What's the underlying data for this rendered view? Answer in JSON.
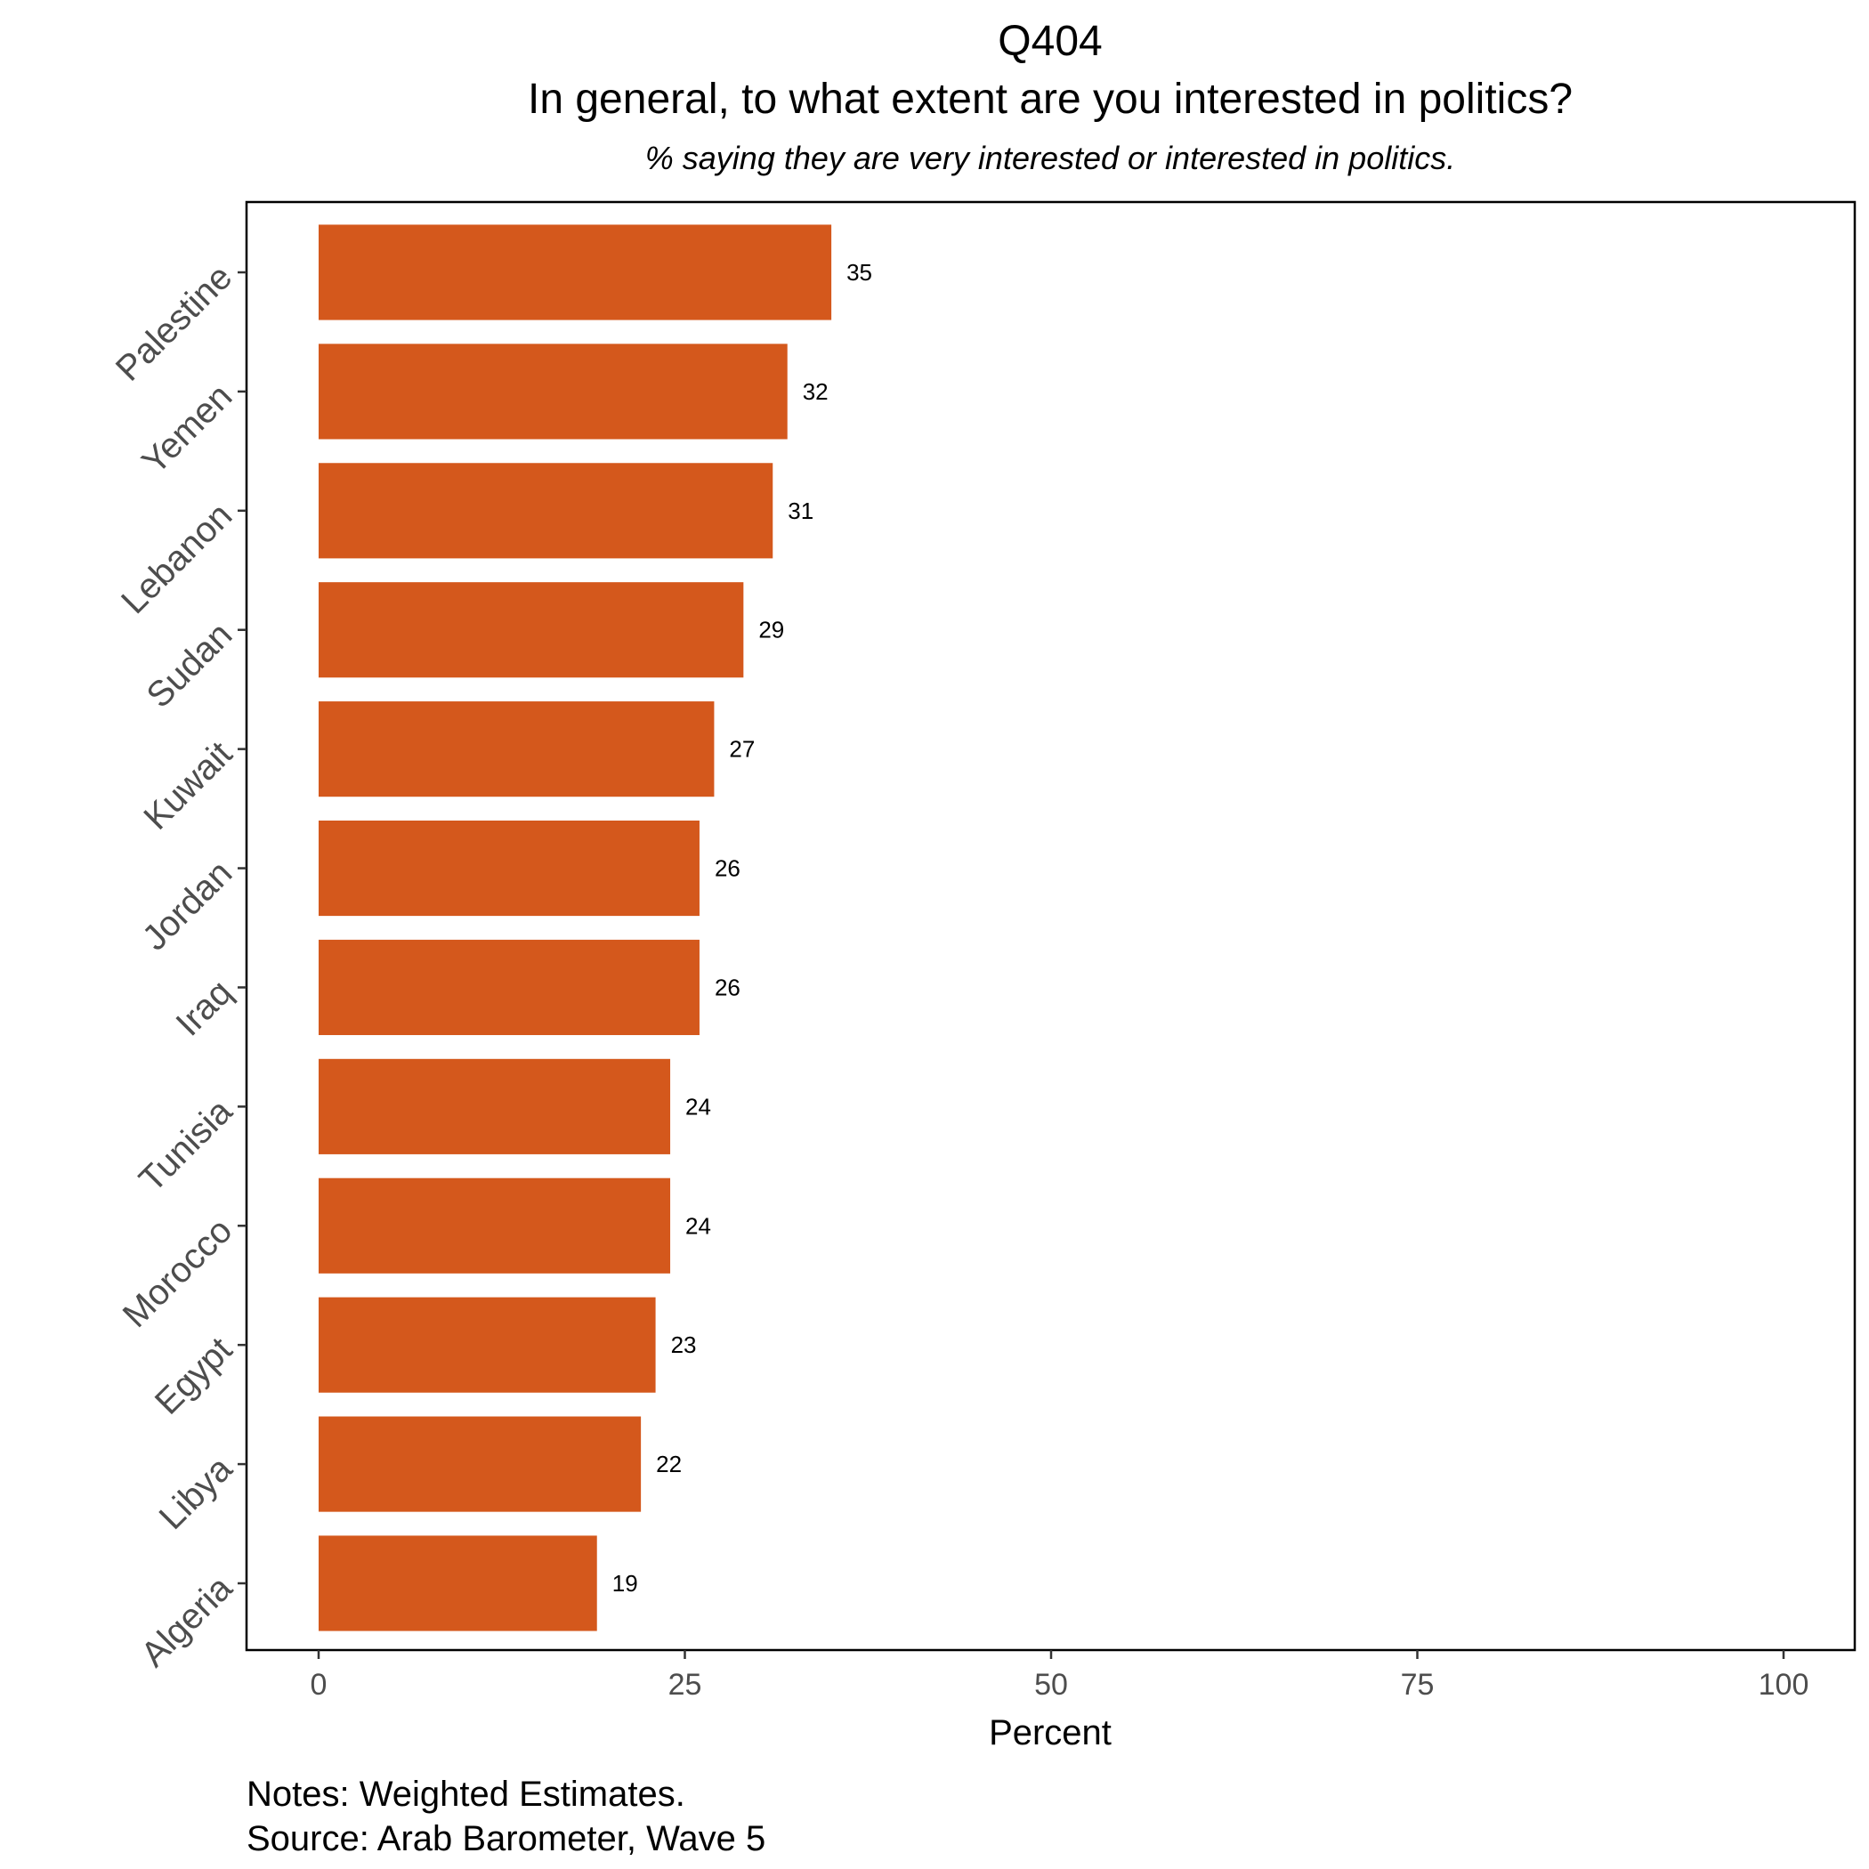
{
  "chart_data": {
    "type": "bar",
    "orientation": "horizontal",
    "title": "Q404",
    "subtitle": "In general, to what extent are you interested in politics?",
    "caption": "% saying they are very interested or interested in politics.",
    "xlabel": "Percent",
    "ylabel": "",
    "xlim": [
      0,
      100
    ],
    "xticks": [
      0,
      25,
      50,
      75,
      100
    ],
    "grid": false,
    "categories": [
      "Palestine",
      "Yemen",
      "Lebanon",
      "Sudan",
      "Kuwait",
      "Jordan",
      "Iraq",
      "Tunisia",
      "Morocco",
      "Egypt",
      "Libya",
      "Algeria"
    ],
    "values": [
      35,
      32,
      31,
      29,
      27,
      26,
      26,
      24,
      24,
      23,
      22,
      19
    ],
    "bar_color": "#d4581c",
    "notes": [
      "Notes: Weighted Estimates.",
      "Source: Arab Barometer, Wave 5"
    ]
  }
}
